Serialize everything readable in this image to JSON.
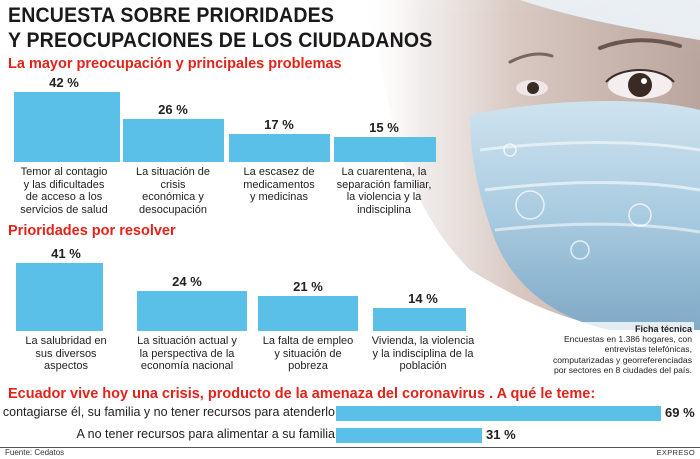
{
  "title_line1": "ENCUESTA SOBRE PRIORIDADES",
  "title_line2": "Y PREOCUPACIONES DE LOS CIUDADANOS",
  "colors": {
    "bar": "#5bc0e8",
    "accent_red": "#e2231a",
    "text": "#222222"
  },
  "chart_data": [
    {
      "type": "bar",
      "title": "La mayor preocupación y principales problemas",
      "categories": [
        "Temor al contagio y las dificultades de acceso a los servicios de salud",
        "La situación de crisis económica y desocupación",
        "La escasez de medicamentos y medicinas",
        "La cuarentena, la separación familiar, la violencia y la indisciplina"
      ],
      "label_lines": [
        [
          "Temor al contagio",
          "y las dificultades",
          "de acceso a los",
          "servicios de salud"
        ],
        [
          "La situación de",
          "crisis",
          "económica y",
          "desocupación"
        ],
        [
          "La escasez de",
          "medicamentos",
          "y medicinas"
        ],
        [
          "La cuarentena, la",
          "separación familiar,",
          "la violencia y la",
          "indisciplina"
        ]
      ],
      "values": [
        42,
        26,
        17,
        15
      ],
      "value_labels": [
        "42 %",
        "26 %",
        "17 %",
        "15 %"
      ],
      "ylim": [
        0,
        42
      ]
    },
    {
      "type": "bar",
      "title": "Prioridades por resolver",
      "categories": [
        "La salubridad en sus diversos aspectos",
        "La situación actual y la perspectiva de la economía nacional",
        "La falta de empleo y situación de pobreza",
        "Vivienda, la violencia y la indisciplina de la población"
      ],
      "label_lines": [
        [
          "La salubridad en",
          "sus diversos",
          "aspectos"
        ],
        [
          "La situación actual y",
          "la perspectiva de la",
          "economía nacional"
        ],
        [
          "La falta de empleo",
          "y situación de",
          "pobreza"
        ],
        [
          "Vivienda, la violencia",
          "y la indisciplina de la",
          "población"
        ]
      ],
      "values": [
        41,
        24,
        21,
        14
      ],
      "value_labels": [
        "41 %",
        "24 %",
        "21 %",
        "14 %"
      ],
      "ylim": [
        0,
        42
      ]
    },
    {
      "type": "bar",
      "orientation": "horizontal",
      "title": "Ecuador vive hoy una crisis, producto de la amenaza del coronavirus . A qué le teme:",
      "categories": [
        "A contagiarse él, su familia y no tener recursos para atenderlo",
        "A no tener recursos para alimentar a su familia"
      ],
      "values": [
        69,
        31
      ],
      "value_labels": [
        "69 %",
        "31 %"
      ],
      "xlim": [
        0,
        69
      ]
    }
  ],
  "ficha": {
    "title": "Ficha técnica",
    "lines": [
      "Encuestas en 1.386 hogares, con",
      "entrevistas telefónicas,",
      "computarizadas y georreferenciadas",
      "por sectores en 8 ciudades del país."
    ]
  },
  "source": "Fuente: Cedatos",
  "brand": "EXPRESO"
}
